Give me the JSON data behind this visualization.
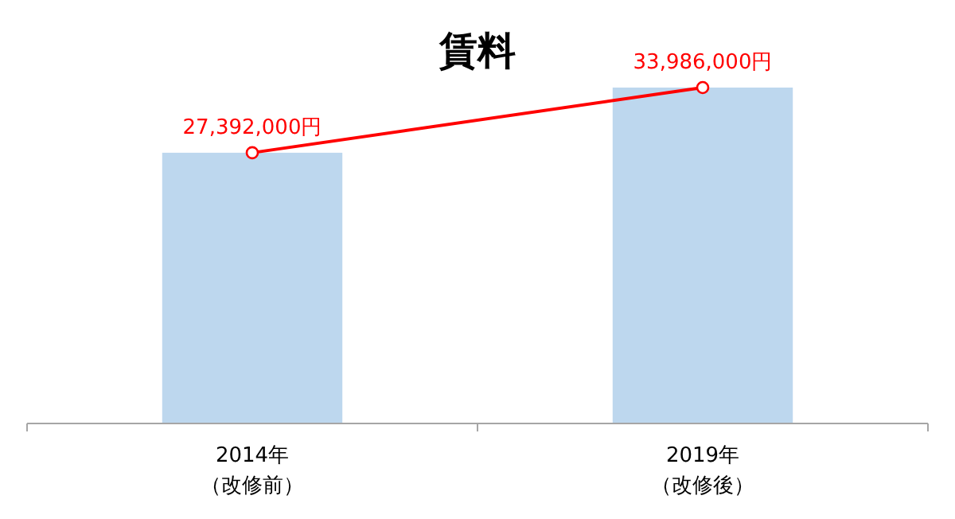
{
  "chart_data": {
    "type": "bar",
    "title": "賃料",
    "categories": [
      "2014年（改修前）",
      "2019年（改修後）"
    ],
    "marker": "circle",
    "series": [
      {
        "type": "bar",
        "color": "#bdd7ee",
        "values": [
          27392000,
          33986000
        ]
      },
      {
        "type": "line",
        "color": "#ff0000",
        "values": [
          27392000,
          33986000
        ],
        "value_labels": [
          "27,392,000円",
          "33,986,000円"
        ]
      }
    ]
  }
}
